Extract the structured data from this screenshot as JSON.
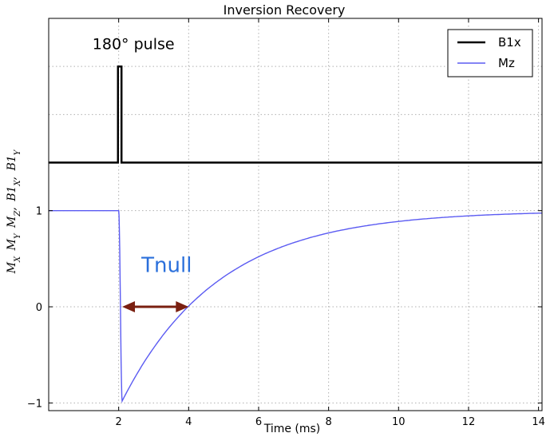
{
  "chart_data": {
    "type": "line",
    "title": "Inversion Recovery",
    "xlabel": "Time (ms)",
    "ylabel": "M_X M_Y M_Z , B1_X , B1_Y",
    "xlim": [
      0,
      14.1
    ],
    "ylim": [
      -1.08,
      3.0
    ],
    "x_ticks": [
      2,
      4,
      6,
      8,
      10,
      12,
      14
    ],
    "x_tick_labels": [
      "2",
      "4",
      "6",
      "8",
      "10",
      "12",
      "14"
    ],
    "y_ticks": [
      -1,
      0,
      1
    ],
    "y_tick_labels": [
      "−1",
      "0",
      "1"
    ],
    "y_grid_extra": [
      2,
      2.5
    ],
    "grid": true,
    "legend_position": "top-right",
    "series": [
      {
        "name": "B1x",
        "color": "#000000",
        "points": [
          [
            0,
            1.5
          ],
          [
            1.98,
            1.5
          ],
          [
            1.98,
            2.5
          ],
          [
            2.08,
            2.5
          ],
          [
            2.08,
            1.5
          ],
          [
            14.1,
            1.5
          ]
        ]
      },
      {
        "name": "Mz",
        "color": "#5b5bf2",
        "model": {
          "description_free": true,
          "pre_value": 1,
          "pulse_start": 2.0,
          "pulse_end": 2.1,
          "min_value": -0.98,
          "t1": 2.75
        }
      }
    ],
    "annotations": {
      "pulse_label": "180° pulse",
      "tnull_label": "Tnull",
      "tnull_arrow": {
        "from_x": 2.1,
        "to_x": 4.0,
        "y": 0,
        "color": "#7a1f10"
      }
    }
  }
}
